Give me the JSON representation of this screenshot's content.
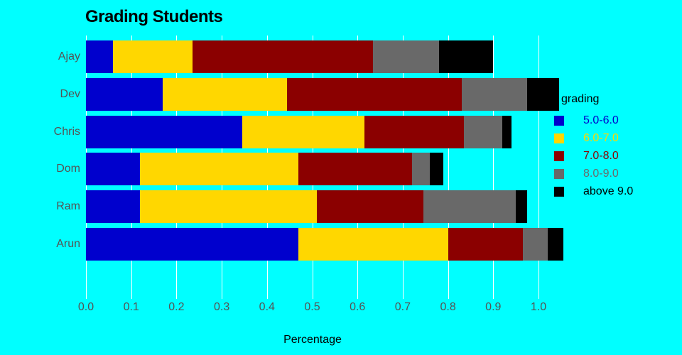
{
  "chart_data": {
    "type": "bar",
    "orientation": "horizontal",
    "stacked": true,
    "title": "Grading Students",
    "xlabel": "Percentage",
    "legend_title": "grading",
    "legend_position": "right",
    "grid": true,
    "background_color": "#00ffff",
    "gridline_color": "#ffffff",
    "axis_text_color": "#545454",
    "categories": [
      "Ajay",
      "Dev",
      "Chris",
      "Dom",
      "Ram",
      "Arun"
    ],
    "series": [
      {
        "name": "5.0-6.0",
        "color": "#0000cd",
        "values": [
          0.06,
          0.17,
          0.345,
          0.12,
          0.12,
          0.47
        ]
      },
      {
        "name": "6.0-7.0",
        "color": "#ffd700",
        "values": [
          0.175,
          0.275,
          0.27,
          0.35,
          0.39,
          0.33
        ]
      },
      {
        "name": "7.0-8.0",
        "color": "#8b0000",
        "values": [
          0.4,
          0.385,
          0.22,
          0.25,
          0.235,
          0.165
        ]
      },
      {
        "name": "8.0-9.0",
        "color": "#696969",
        "values": [
          0.145,
          0.145,
          0.085,
          0.04,
          0.205,
          0.055
        ]
      },
      {
        "name": "above 9.0",
        "color": "#000000",
        "values": [
          0.12,
          0.07,
          0.02,
          0.03,
          0.025,
          0.035
        ]
      }
    ],
    "totals": [
      0.9,
      1.045,
      0.94,
      0.79,
      0.975,
      1.055
    ],
    "x_ticks": [
      "0.0",
      "0.1",
      "0.2",
      "0.3",
      "0.4",
      "0.5",
      "0.6",
      "0.7",
      "0.8",
      "0.9",
      "1.0"
    ],
    "xlim": [
      0,
      1.08
    ]
  }
}
